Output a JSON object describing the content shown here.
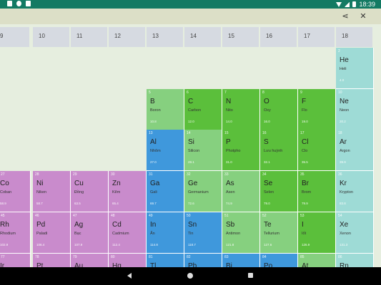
{
  "status_bar": {
    "time": "18:39"
  },
  "toolbar": {
    "share_icon": "share-icon",
    "close_icon": "close-icon",
    "share_glyph": "⋖",
    "close_glyph": "✕"
  },
  "colors": {
    "transition_metal": "#c98bcc",
    "nonmetal": "#5bbf3b",
    "metalloid": "#86d07f",
    "post_transition": "#3f98dc",
    "noble_gas": "#9edbd6",
    "header": "#d6dae1",
    "toolbar": "#dcdfc7",
    "status": "#137a63"
  },
  "groups": [
    "9",
    "10",
    "11",
    "12",
    "13",
    "14",
    "15",
    "16",
    "17",
    "18"
  ],
  "elements": [
    {
      "num": "2",
      "sym": "He",
      "name": "Heli",
      "mass": "4.0",
      "type": "noble_gas",
      "g": 9,
      "p": 1
    },
    {
      "num": "5",
      "sym": "B",
      "name": "Boron",
      "mass": "10.8",
      "type": "metalloid",
      "g": 4,
      "p": 2
    },
    {
      "num": "6",
      "sym": "C",
      "name": "Carbon",
      "mass": "12.0",
      "type": "nonmetal",
      "g": 5,
      "p": 2
    },
    {
      "num": "7",
      "sym": "N",
      "name": "Nito",
      "mass": "14.0",
      "type": "nonmetal",
      "g": 6,
      "p": 2
    },
    {
      "num": "8",
      "sym": "O",
      "name": "Oxy",
      "mass": "16.0",
      "type": "nonmetal",
      "g": 7,
      "p": 2
    },
    {
      "num": "9",
      "sym": "F",
      "name": "Flo",
      "mass": "19.0",
      "type": "nonmetal",
      "g": 8,
      "p": 2
    },
    {
      "num": "10",
      "sym": "Ne",
      "name": "Neon",
      "mass": "20.2",
      "type": "noble_gas",
      "g": 9,
      "p": 2
    },
    {
      "num": "13",
      "sym": "Al",
      "name": "Nhôm",
      "mass": "27.0",
      "type": "post_transition",
      "g": 4,
      "p": 3
    },
    {
      "num": "14",
      "sym": "Si",
      "name": "Silicon",
      "mass": "28.1",
      "type": "metalloid",
      "g": 5,
      "p": 3
    },
    {
      "num": "15",
      "sym": "P",
      "name": "Photpho",
      "mass": "31.0",
      "type": "nonmetal",
      "g": 6,
      "p": 3
    },
    {
      "num": "16",
      "sym": "S",
      "name": "Lưu huỳnh",
      "mass": "32.1",
      "type": "nonmetal",
      "g": 7,
      "p": 3
    },
    {
      "num": "17",
      "sym": "Cl",
      "name": "Clo",
      "mass": "35.5",
      "type": "nonmetal",
      "g": 8,
      "p": 3
    },
    {
      "num": "18",
      "sym": "Ar",
      "name": "Argon",
      "mass": "39.9",
      "type": "noble_gas",
      "g": 9,
      "p": 3
    },
    {
      "num": "27",
      "sym": "Co",
      "name": "Coban",
      "mass": "58.9",
      "type": "transition_metal",
      "g": 0,
      "p": 4
    },
    {
      "num": "28",
      "sym": "Ni",
      "name": "Niken",
      "mass": "58.7",
      "type": "transition_metal",
      "g": 1,
      "p": 4
    },
    {
      "num": "29",
      "sym": "Cu",
      "name": "Đồng",
      "mass": "63.5",
      "type": "transition_metal",
      "g": 2,
      "p": 4
    },
    {
      "num": "30",
      "sym": "Zn",
      "name": "Kẽm",
      "mass": "65.4",
      "type": "transition_metal",
      "g": 3,
      "p": 4
    },
    {
      "num": "31",
      "sym": "Ga",
      "name": "Gali",
      "mass": "69.7",
      "type": "post_transition",
      "g": 4,
      "p": 4
    },
    {
      "num": "32",
      "sym": "Ge",
      "name": "Germanium",
      "mass": "72.6",
      "type": "metalloid",
      "g": 5,
      "p": 4
    },
    {
      "num": "33",
      "sym": "As",
      "name": "Asen",
      "mass": "74.9",
      "type": "metalloid",
      "g": 6,
      "p": 4
    },
    {
      "num": "34",
      "sym": "Se",
      "name": "Selen",
      "mass": "79.0",
      "type": "nonmetal",
      "g": 7,
      "p": 4
    },
    {
      "num": "35",
      "sym": "Br",
      "name": "Brom",
      "mass": "79.9",
      "type": "nonmetal",
      "g": 8,
      "p": 4
    },
    {
      "num": "36",
      "sym": "Kr",
      "name": "Krypton",
      "mass": "83.8",
      "type": "noble_gas",
      "g": 9,
      "p": 4
    },
    {
      "num": "45",
      "sym": "Rh",
      "name": "Rhodium",
      "mass": "102.9",
      "type": "transition_metal",
      "g": 0,
      "p": 5
    },
    {
      "num": "46",
      "sym": "Pd",
      "name": "Paladi",
      "mass": "106.4",
      "type": "transition_metal",
      "g": 1,
      "p": 5
    },
    {
      "num": "47",
      "sym": "Ag",
      "name": "Bạc",
      "mass": "107.9",
      "type": "transition_metal",
      "g": 2,
      "p": 5
    },
    {
      "num": "48",
      "sym": "Cd",
      "name": "Cadmium",
      "mass": "112.4",
      "type": "transition_metal",
      "g": 3,
      "p": 5
    },
    {
      "num": "49",
      "sym": "In",
      "name": "Ấn",
      "mass": "114.8",
      "type": "post_transition",
      "g": 4,
      "p": 5
    },
    {
      "num": "50",
      "sym": "Sn",
      "name": "Tin",
      "mass": "118.7",
      "type": "post_transition",
      "g": 5,
      "p": 5
    },
    {
      "num": "51",
      "sym": "Sb",
      "name": "Antimon",
      "mass": "121.8",
      "type": "metalloid",
      "g": 6,
      "p": 5
    },
    {
      "num": "52",
      "sym": "Te",
      "name": "Tellurium",
      "mass": "127.6",
      "type": "metalloid",
      "g": 7,
      "p": 5
    },
    {
      "num": "53",
      "sym": "I",
      "name": "Iốt",
      "mass": "126.9",
      "type": "nonmetal",
      "g": 8,
      "p": 5
    },
    {
      "num": "54",
      "sym": "Xe",
      "name": "Xenon",
      "mass": "131.3",
      "type": "noble_gas",
      "g": 9,
      "p": 5
    },
    {
      "num": "77",
      "sym": "Ir",
      "name": "",
      "mass": "",
      "type": "transition_metal",
      "g": 0,
      "p": 6
    },
    {
      "num": "78",
      "sym": "Pt",
      "name": "",
      "mass": "",
      "type": "transition_metal",
      "g": 1,
      "p": 6
    },
    {
      "num": "79",
      "sym": "Au",
      "name": "",
      "mass": "",
      "type": "transition_metal",
      "g": 2,
      "p": 6
    },
    {
      "num": "80",
      "sym": "Hg",
      "name": "",
      "mass": "",
      "type": "transition_metal",
      "g": 3,
      "p": 6
    },
    {
      "num": "81",
      "sym": "Tl",
      "name": "",
      "mass": "",
      "type": "post_transition",
      "g": 4,
      "p": 6
    },
    {
      "num": "82",
      "sym": "Pb",
      "name": "",
      "mass": "",
      "type": "post_transition",
      "g": 5,
      "p": 6
    },
    {
      "num": "83",
      "sym": "Bi",
      "name": "",
      "mass": "",
      "type": "post_transition",
      "g": 6,
      "p": 6
    },
    {
      "num": "84",
      "sym": "Po",
      "name": "",
      "mass": "",
      "type": "post_transition",
      "g": 7,
      "p": 6
    },
    {
      "num": "85",
      "sym": "At",
      "name": "",
      "mass": "",
      "type": "metalloid",
      "g": 8,
      "p": 6
    },
    {
      "num": "86",
      "sym": "Rn",
      "name": "",
      "mass": "",
      "type": "noble_gas",
      "g": 9,
      "p": 6
    }
  ]
}
